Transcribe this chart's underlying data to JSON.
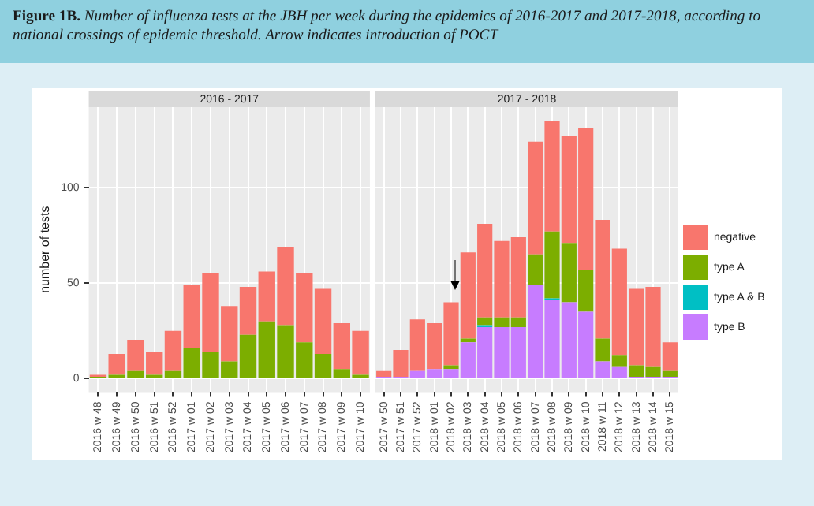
{
  "chart_data": [
    {
      "type": "bar",
      "title": "2016 - 2017",
      "ylabel": "number of tests",
      "annotations": [
        "Figure 1B.",
        "Number of influenza tests at the JBH per week during the epidemics of 2016-2017 and 2017-2018, according to national crossings of epidemic threshold. Arrow indicates introduction of POCT"
      ],
      "categories": [
        "2016 w 48",
        "2016 w 49",
        "2016 w 50",
        "2016 w 51",
        "2016 w 52",
        "2017 w 01",
        "2017 w 02",
        "2017 w 03",
        "2017 w 04",
        "2017 w 05",
        "2017 w 06",
        "2017 w 07",
        "2017 w 08",
        "2017 w 09",
        "2017 w 10"
      ],
      "series": [
        {
          "color": "#7cae00",
          "values": [
            1,
            2,
            4,
            2,
            4,
            16,
            14,
            9,
            23,
            30,
            28,
            19,
            13,
            5,
            2
          ]
        },
        {
          "color": "#f8766d",
          "values": [
            1,
            11,
            16,
            12,
            21,
            33,
            41,
            29,
            25,
            26,
            41,
            36,
            34,
            24,
            23
          ]
        }
      ],
      "stacked": true,
      "ylim": [
        -7,
        142
      ],
      "yticks": [
        0,
        50,
        100
      ],
      "grid": true,
      "legend": false
    },
    {
      "type": "bar",
      "title": "2017 - 2018",
      "categories": [
        "2017 w 50",
        "2017 w 51",
        "2017 w 52",
        "2018 w 01",
        "2018 w 02",
        "2018 w 03",
        "2018 w 04",
        "2018 w 05",
        "2018 w 06",
        "2018 w 07",
        "2018 w 08",
        "2018 w 09",
        "2018 w 10",
        "2018 w 11",
        "2018 w 12",
        "2018 w 13",
        "2018 w 14",
        "2018 w 15"
      ],
      "series": [
        {
          "name": "type B",
          "color": "#c77cff",
          "values": [
            1,
            1,
            4,
            5,
            5,
            19,
            27,
            27,
            27,
            49,
            41,
            40,
            35,
            9,
            6,
            1,
            1,
            1
          ]
        },
        {
          "name": "type A & B",
          "color": "#00bfc4",
          "values": [
            0,
            0,
            0,
            0,
            0,
            0,
            1,
            0,
            0,
            0,
            1,
            0,
            0,
            0,
            0,
            0,
            0,
            0
          ]
        },
        {
          "name": "type A",
          "color": "#7cae00",
          "values": [
            0,
            0,
            0,
            0,
            2,
            2,
            4,
            5,
            5,
            16,
            35,
            31,
            22,
            12,
            6,
            6,
            5,
            3
          ]
        },
        {
          "name": "negative",
          "color": "#f8766d",
          "values": [
            3,
            14,
            27,
            24,
            33,
            45,
            49,
            40,
            42,
            59,
            58,
            56,
            74,
            62,
            56,
            40,
            42,
            15
          ]
        }
      ],
      "stacked": true,
      "ylim": [
        -7,
        142
      ],
      "yticks": [
        0,
        50,
        100
      ],
      "grid": true,
      "legend": "right",
      "tick_labels": "x"
    }
  ]
}
